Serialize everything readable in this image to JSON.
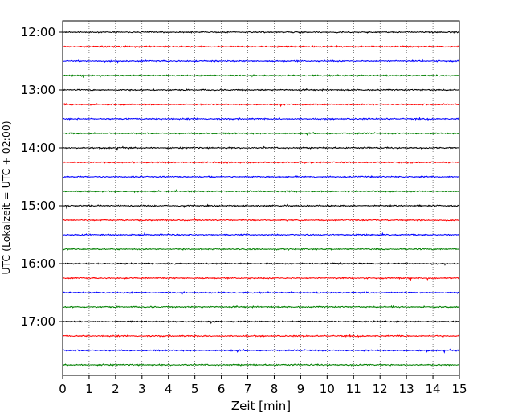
{
  "chart_data": {
    "type": "line",
    "title": "",
    "xlabel": "Zeit  [min]",
    "ylabel": "UTC (Lokalzeit = UTC + 02:00)",
    "xlim": [
      0,
      15
    ],
    "x_ticks": [
      "0",
      "1",
      "2",
      "3",
      "4",
      "5",
      "6",
      "7",
      "8",
      "9",
      "10",
      "11",
      "12",
      "13",
      "14",
      "15"
    ],
    "y_ticks": [
      "12:00",
      "13:00",
      "14:00",
      "15:00",
      "16:00",
      "17:00"
    ],
    "grid": "vertical dotted lines at each minute",
    "trace_interval_min": 15,
    "color_cycle": [
      "#000000",
      "#ff0000",
      "#0000ff",
      "#008000"
    ],
    "traces": [
      {
        "start": "12:00",
        "color": "#000000"
      },
      {
        "start": "12:15",
        "color": "#ff0000"
      },
      {
        "start": "12:30",
        "color": "#0000ff"
      },
      {
        "start": "12:45",
        "color": "#008000"
      },
      {
        "start": "13:00",
        "color": "#000000"
      },
      {
        "start": "13:15",
        "color": "#ff0000"
      },
      {
        "start": "13:30",
        "color": "#0000ff"
      },
      {
        "start": "13:45",
        "color": "#008000"
      },
      {
        "start": "14:00",
        "color": "#000000"
      },
      {
        "start": "14:15",
        "color": "#ff0000"
      },
      {
        "start": "14:30",
        "color": "#0000ff"
      },
      {
        "start": "14:45",
        "color": "#008000"
      },
      {
        "start": "15:00",
        "color": "#000000"
      },
      {
        "start": "15:15",
        "color": "#ff0000"
      },
      {
        "start": "15:30",
        "color": "#0000ff"
      },
      {
        "start": "15:45",
        "color": "#008000"
      },
      {
        "start": "16:00",
        "color": "#000000"
      },
      {
        "start": "16:15",
        "color": "#ff0000"
      },
      {
        "start": "16:30",
        "color": "#0000ff"
      },
      {
        "start": "16:45",
        "color": "#008000"
      },
      {
        "start": "17:00",
        "color": "#000000"
      },
      {
        "start": "17:15",
        "color": "#ff0000"
      },
      {
        "start": "17:30",
        "color": "#0000ff"
      },
      {
        "start": "17:45",
        "color": "#008000"
      }
    ]
  }
}
